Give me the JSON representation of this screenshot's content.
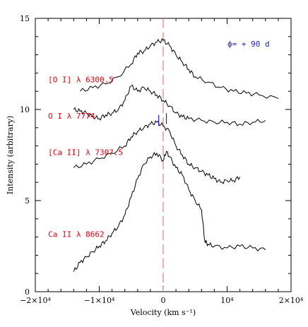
{
  "chart_data": {
    "type": "line",
    "xlabel": "Velocity (km s⁻¹)",
    "ylabel": "Intensity (arbitrary)",
    "xlim": [
      -20000,
      20000
    ],
    "ylim": [
      0,
      15
    ],
    "x_ticks": [
      {
        "value": -20000,
        "label": "−2×10⁴"
      },
      {
        "value": -10000,
        "label": "−1×10⁴"
      },
      {
        "value": 0,
        "label": "0"
      },
      {
        "value": 10000,
        "label": "10⁴"
      },
      {
        "value": 20000,
        "label": "2×10⁴"
      }
    ],
    "y_ticks": [
      {
        "value": 0,
        "label": "0"
      },
      {
        "value": 5,
        "label": "5"
      },
      {
        "value": 10,
        "label": "10"
      },
      {
        "value": 15,
        "label": "15"
      }
    ],
    "phase_label": "ϕ= + 90 d",
    "zero_velocity_line": {
      "x": 0,
      "color": "#e87c7c"
    },
    "marker_lines": [
      {
        "x": -700,
        "y": [
          9.1,
          9.7
        ],
        "color": "#1f1fd6"
      },
      {
        "x": 500,
        "y": [
          9.2,
          9.8
        ],
        "color": "#1f1fd6"
      }
    ],
    "series": [
      {
        "name": "[O I] λ 6300.5",
        "color": "#000000",
        "label_color": "#e8000d",
        "label_pos": [
          -18000,
          11.5
        ],
        "points": [
          [
            -13000,
            11.0
          ],
          [
            -11000,
            11.2
          ],
          [
            -9000,
            11.4
          ],
          [
            -7000,
            11.8
          ],
          [
            -5000,
            12.5
          ],
          [
            -4000,
            13.1
          ],
          [
            -3000,
            13.2
          ],
          [
            -2000,
            13.5
          ],
          [
            -1000,
            13.7
          ],
          [
            0,
            13.8
          ],
          [
            1000,
            13.5
          ],
          [
            2000,
            13.0
          ],
          [
            3000,
            12.6
          ],
          [
            4000,
            12.2
          ],
          [
            5000,
            11.8
          ],
          [
            7000,
            11.5
          ],
          [
            9000,
            11.2
          ],
          [
            11000,
            11.0
          ],
          [
            13000,
            10.9
          ],
          [
            15000,
            10.8
          ],
          [
            18000,
            10.6
          ]
        ]
      },
      {
        "name": "O I λ 7774",
        "color": "#000000",
        "label_color": "#e8000d",
        "label_pos": [
          -18000,
          9.5
        ],
        "points": [
          [
            -14000,
            10.0
          ],
          [
            -13000,
            9.9
          ],
          [
            -12000,
            9.8
          ],
          [
            -11000,
            9.6
          ],
          [
            -10000,
            9.5
          ],
          [
            -9000,
            9.7
          ],
          [
            -8000,
            9.8
          ],
          [
            -7000,
            10.0
          ],
          [
            -6000,
            10.5
          ],
          [
            -5000,
            11.3
          ],
          [
            -4000,
            11.0
          ],
          [
            -3000,
            11.2
          ],
          [
            -2000,
            11.0
          ],
          [
            -1000,
            10.8
          ],
          [
            0,
            10.5
          ],
          [
            1000,
            10.2
          ],
          [
            2000,
            9.8
          ],
          [
            3000,
            9.6
          ],
          [
            4000,
            9.5
          ],
          [
            6000,
            9.4
          ],
          [
            8000,
            9.3
          ],
          [
            10000,
            9.3
          ],
          [
            12000,
            9.2
          ],
          [
            14000,
            9.3
          ],
          [
            16000,
            9.4
          ]
        ]
      },
      {
        "name": "[Ca II] λ 7307.5",
        "color": "#000000",
        "label_color": "#e8000d",
        "label_pos": [
          -18000,
          7.5
        ],
        "points": [
          [
            -14000,
            6.8
          ],
          [
            -12000,
            7.0
          ],
          [
            -10000,
            7.3
          ],
          [
            -8000,
            7.6
          ],
          [
            -6000,
            8.0
          ],
          [
            -5000,
            8.5
          ],
          [
            -4000,
            8.8
          ],
          [
            -3000,
            9.0
          ],
          [
            -2000,
            9.2
          ],
          [
            -1000,
            9.3
          ],
          [
            0,
            9.1
          ],
          [
            1000,
            8.8
          ],
          [
            2000,
            8.0
          ],
          [
            3000,
            7.5
          ],
          [
            4000,
            7.0
          ],
          [
            5000,
            6.8
          ],
          [
            6000,
            6.6
          ],
          [
            7000,
            6.4
          ],
          [
            8000,
            6.2
          ],
          [
            9000,
            6.0
          ],
          [
            10000,
            6.1
          ],
          [
            11000,
            6.1
          ],
          [
            12000,
            6.3
          ]
        ]
      },
      {
        "name": "Ca II λ 8662",
        "color": "#000000",
        "label_color": "#e8000d",
        "label_pos": [
          -18000,
          3.0
        ],
        "points": [
          [
            -14000,
            1.1
          ],
          [
            -13000,
            1.6
          ],
          [
            -12000,
            1.9
          ],
          [
            -11000,
            2.2
          ],
          [
            -10000,
            2.5
          ],
          [
            -9000,
            2.8
          ],
          [
            -8000,
            3.2
          ],
          [
            -7000,
            3.6
          ],
          [
            -6000,
            4.2
          ],
          [
            -5000,
            5.2
          ],
          [
            -4000,
            6.2
          ],
          [
            -3000,
            7.0
          ],
          [
            -2000,
            7.4
          ],
          [
            -1000,
            7.6
          ],
          [
            0,
            7.2
          ],
          [
            500,
            7.7
          ],
          [
            1000,
            7.4
          ],
          [
            2000,
            6.8
          ],
          [
            3000,
            6.4
          ],
          [
            4000,
            5.6
          ],
          [
            5000,
            5.0
          ],
          [
            6000,
            4.5
          ],
          [
            6500,
            2.8
          ],
          [
            7000,
            2.6
          ],
          [
            8000,
            2.5
          ],
          [
            10000,
            2.4
          ],
          [
            12000,
            2.5
          ],
          [
            14000,
            2.4
          ],
          [
            16000,
            2.3
          ]
        ]
      }
    ]
  }
}
